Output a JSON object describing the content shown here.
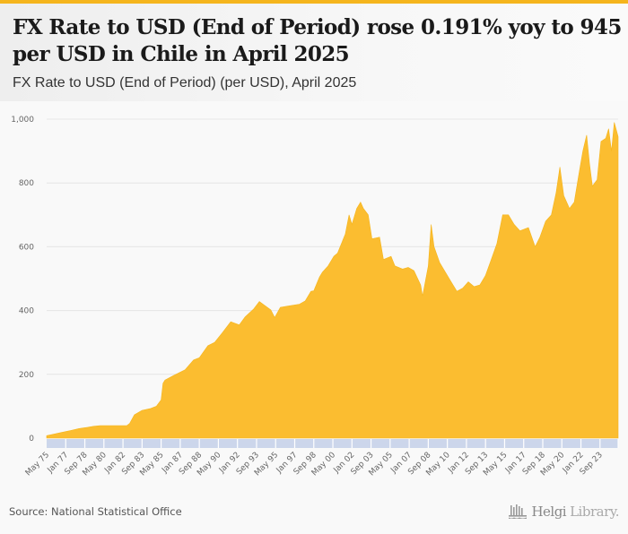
{
  "header": {
    "title": "FX Rate to USD (End of Period) rose 0.191% yoy to 945 per USD in Chile in April 2025",
    "subtitle": "FX Rate to USD (End of Period) (per USD), April 2025"
  },
  "footer": {
    "source": "Source: National Statistical Office",
    "logo_main": "Helgi",
    "logo_suffix": "Library."
  },
  "colors": {
    "accent": "#f5b51d",
    "area": "#fbbd30",
    "band": "#ccd6eb",
    "grid": "#e6e6e6"
  },
  "chart_data": {
    "type": "area",
    "title": "FX Rate to USD (End of Period) (per USD), April 2025",
    "xlabel": "",
    "ylabel": "",
    "ylim": [
      0,
      1000
    ],
    "yticks": [
      0,
      200,
      400,
      600,
      800,
      1000
    ],
    "ytick_labels": [
      "0",
      "200",
      "400",
      "600",
      "800",
      "1,000"
    ],
    "xlim": [
      "1975-05",
      "2025-04"
    ],
    "xtick_labels": [
      "May 75",
      "Jan 77",
      "Sep 78",
      "May 80",
      "Jan 82",
      "Sep 83",
      "May 85",
      "Jan 87",
      "Sep 88",
      "May 90",
      "Jan 92",
      "Sep 93",
      "May 95",
      "Jan 97",
      "Sep 98",
      "May 00",
      "Jan 02",
      "Sep 03",
      "May 05",
      "Jan 07",
      "Sep 08",
      "May 10",
      "Jan 12",
      "Sep 13",
      "May 15",
      "Jan 17",
      "Sep 18",
      "May 20",
      "Jan 22",
      "Sep 23"
    ],
    "xtick_dates": [
      "1975-05",
      "1977-01",
      "1978-09",
      "1980-05",
      "1982-01",
      "1983-09",
      "1985-05",
      "1987-01",
      "1988-09",
      "1990-05",
      "1992-01",
      "1993-09",
      "1995-05",
      "1997-01",
      "1998-09",
      "2000-05",
      "2002-01",
      "2003-09",
      "2005-05",
      "2007-01",
      "2008-09",
      "2010-05",
      "2012-01",
      "2013-09",
      "2015-05",
      "2017-01",
      "2018-09",
      "2020-05",
      "2022-01",
      "2023-09"
    ],
    "grid": true,
    "legend": "none",
    "series": [
      {
        "name": "FX Rate to USD (End of Period)",
        "x": [
          "1975-05",
          "1976-01",
          "1976-09",
          "1977-06",
          "1978-03",
          "1978-12",
          "1979-06",
          "1980-01",
          "1980-06",
          "1981-06",
          "1982-05",
          "1982-08",
          "1983-01",
          "1983-09",
          "1984-06",
          "1984-12",
          "1985-05",
          "1985-07",
          "1985-09",
          "1986-06",
          "1987-06",
          "1988-03",
          "1988-09",
          "1989-06",
          "1990-01",
          "1990-09",
          "1991-06",
          "1992-03",
          "1992-09",
          "1993-06",
          "1993-12",
          "1994-06",
          "1994-12",
          "1995-04",
          "1995-10",
          "1996-06",
          "1997-06",
          "1997-12",
          "1998-06",
          "1998-09",
          "1999-03",
          "1999-06",
          "1999-12",
          "2000-06",
          "2000-10",
          "2001-06",
          "2001-10",
          "2002-01",
          "2002-06",
          "2002-10",
          "2003-01",
          "2003-06",
          "2003-10",
          "2004-06",
          "2004-10",
          "2005-06",
          "2005-10",
          "2006-06",
          "2006-12",
          "2007-06",
          "2008-01",
          "2008-03",
          "2008-09",
          "2008-12",
          "2009-03",
          "2009-09",
          "2010-03",
          "2010-09",
          "2011-03",
          "2011-09",
          "2012-03",
          "2012-09",
          "2013-03",
          "2013-09",
          "2014-03",
          "2014-09",
          "2015-03",
          "2015-09",
          "2016-03",
          "2016-09",
          "2017-06",
          "2018-01",
          "2018-06",
          "2018-12",
          "2019-06",
          "2019-11",
          "2020-03",
          "2020-07",
          "2021-01",
          "2021-06",
          "2021-11",
          "2022-03",
          "2022-07",
          "2022-10",
          "2023-01",
          "2023-06",
          "2023-10",
          "2024-03",
          "2024-06",
          "2024-09",
          "2024-12",
          "2025-04"
        ],
        "values": [
          8,
          13,
          18,
          24,
          30,
          34,
          37,
          39,
          39,
          39,
          39,
          46,
          73,
          87,
          93,
          100,
          120,
          172,
          182,
          196,
          214,
          245,
          252,
          290,
          300,
          330,
          365,
          355,
          380,
          405,
          428,
          415,
          402,
          378,
          410,
          414,
          420,
          430,
          460,
          462,
          505,
          520,
          540,
          570,
          580,
          640,
          700,
          670,
          720,
          740,
          720,
          700,
          625,
          630,
          560,
          570,
          540,
          530,
          535,
          525,
          480,
          445,
          540,
          670,
          600,
          550,
          520,
          490,
          460,
          470,
          490,
          475,
          480,
          510,
          560,
          610,
          700,
          700,
          670,
          650,
          660,
          600,
          630,
          680,
          700,
          770,
          850,
          760,
          720,
          740,
          830,
          900,
          950,
          860,
          790,
          810,
          930,
          940,
          970,
          900,
          990,
          945
        ]
      }
    ]
  }
}
